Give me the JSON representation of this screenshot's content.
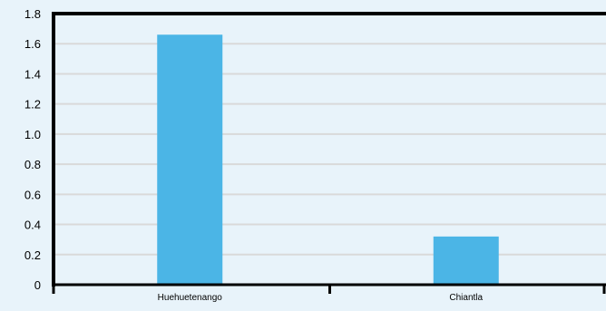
{
  "colors": {
    "background": "#E8F3FA",
    "plot_background": "#E8F3FA",
    "bar": "#4BB5E6",
    "gridline": "#D9D9D9",
    "axis": "#000000"
  },
  "chart_data": {
    "type": "bar",
    "title": "",
    "xlabel": "",
    "ylabel": "",
    "categories": [
      "Huehuetenango",
      "Chiantla"
    ],
    "values": [
      1.66,
      0.32
    ],
    "ylim": [
      0,
      1.8
    ],
    "yticks": [
      0,
      0.2,
      0.4,
      0.6,
      0.8,
      1.0,
      1.2,
      1.4,
      1.6,
      1.8
    ],
    "ytick_labels": [
      "0",
      "0.2",
      "0.4",
      "0.6",
      "0.8",
      "1.0",
      "1.2",
      "1.4",
      "1.6",
      "1.8"
    ],
    "grid": true,
    "legend": "none"
  }
}
